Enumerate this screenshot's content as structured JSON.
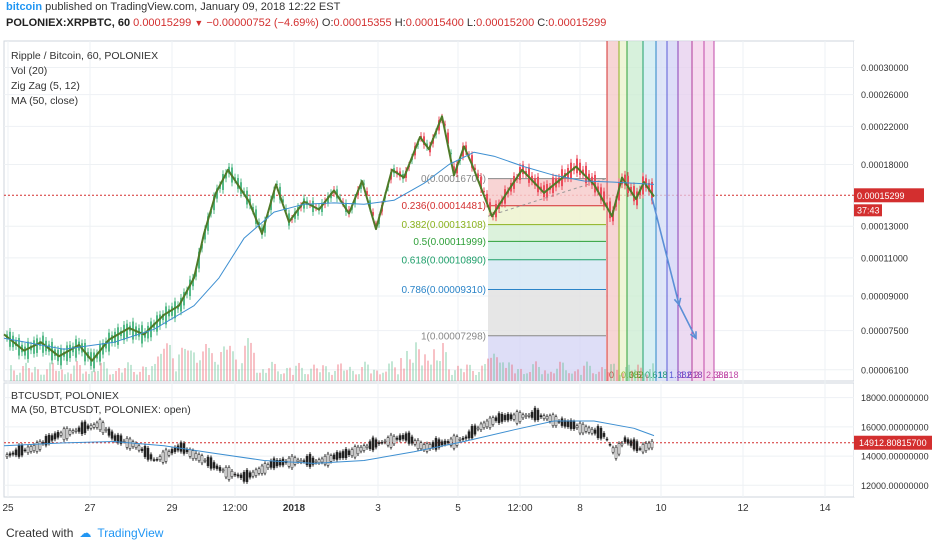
{
  "header": {
    "author": "bitcoin",
    "published_text": "published on TradingView.com, January 09, 2018 12:22 EST",
    "symbol": "POLONIEX:XRPBTC, 60",
    "last": "0.00015299",
    "change": "−0.00000752 (−4.69%)",
    "open_label": "O:",
    "open": "0.00015355",
    "high_label": "H:",
    "high": "0.00015400",
    "low_label": "L:",
    "low": "0.00015200",
    "close_label": "C:",
    "close": "0.00015299"
  },
  "legend_main": [
    "Ripple / Bitcoin, 60, POLONIEX",
    "Vol (20)",
    "Zig Zag (5, 12)",
    "MA (50, close)"
  ],
  "legend_lower": [
    "BTCUSDT, POLONIEX",
    "MA (50, BTCUSDT, POLONIEX: open)"
  ],
  "footer": {
    "created_with": "Created with",
    "brand": "TradingView"
  },
  "colors": {
    "up": "#53b987",
    "down": "#eb4d5c",
    "zigzag": "#4f7a28",
    "ma": "#3d8fd1",
    "price_line": "#d32f2f",
    "forecast": "#5b8fd6"
  },
  "chart_data": [
    {
      "type": "line",
      "title": "Ripple / Bitcoin, 60, POLONIEX",
      "x_ticks": [
        "25",
        "27",
        "29",
        "12:00",
        "2018",
        "3",
        "5",
        "12:00",
        "8",
        "10",
        "12",
        "14"
      ],
      "y_ticks": [
        "0.00030000",
        "0.00026000",
        "0.00022000",
        "0.00018000",
        "0.00015299",
        "0.00013000",
        "0.00011000",
        "0.00009000",
        "0.00007500",
        "0.00006100"
      ],
      "y_scale": "log",
      "last_price": 0.00015299,
      "countdown": "37:43",
      "ylim": [
        5.75e-05,
        0.000345
      ],
      "series": [
        {
          "name": "Zig Zag (5, 12)",
          "points": [
            [
              0,
              7.35e-05
            ],
            [
              20,
              6.75e-05
            ],
            [
              37,
              7.05e-05
            ],
            [
              55,
              6.55e-05
            ],
            [
              75,
              6.95e-05
            ],
            [
              88,
              6.4e-05
            ],
            [
              105,
              7.15e-05
            ],
            [
              125,
              7.6e-05
            ],
            [
              140,
              7.35e-05
            ],
            [
              160,
              8.15e-05
            ],
            [
              175,
              8.55e-05
            ],
            [
              190,
              9.9e-05
            ],
            [
              200,
              0.000125
            ],
            [
              212,
              0.000155
            ],
            [
              224,
              0.000175
            ],
            [
              245,
              0.000148
            ],
            [
              258,
              0.000125
            ],
            [
              272,
              0.000162
            ],
            [
              285,
              0.000133
            ],
            [
              300,
              0.000148
            ],
            [
              315,
              0.000142
            ],
            [
              330,
              0.000157
            ],
            [
              345,
              0.000139
            ],
            [
              358,
              0.000165
            ],
            [
              372,
              0.000128
            ],
            [
              388,
              0.000175
            ],
            [
              400,
              0.000168
            ],
            [
              416,
              0.000208
            ],
            [
              425,
              0.000195
            ],
            [
              438,
              0.000232
            ],
            [
              450,
              0.00017
            ],
            [
              460,
              0.000198
            ],
            [
              468,
              0.00018
            ],
            [
              488,
              0.000137
            ],
            [
              502,
              0.000154
            ],
            [
              518,
              0.000175
            ],
            [
              540,
              0.000155
            ],
            [
              572,
              0.000178
            ],
            [
              590,
              0.000162
            ],
            [
              608,
              0.000137
            ],
            [
              618,
              0.000168
            ],
            [
              624,
              0.00016
            ],
            [
              632,
              0.00015
            ],
            [
              640,
              0.000164
            ],
            [
              650,
              0.000152
            ]
          ]
        },
        {
          "name": "MA (50, close)",
          "points": [
            [
              0,
              7.2e-05
            ],
            [
              60,
              6.8e-05
            ],
            [
              110,
              7.05e-05
            ],
            [
              150,
              7.55e-05
            ],
            [
              190,
              8.55e-05
            ],
            [
              215,
              9.9e-05
            ],
            [
              240,
              0.000122
            ],
            [
              270,
              0.00014
            ],
            [
              300,
              0.000146
            ],
            [
              330,
              0.000147
            ],
            [
              360,
              0.000146
            ],
            [
              390,
              0.000149
            ],
            [
              420,
              0.000163
            ],
            [
              445,
              0.00018
            ],
            [
              470,
              0.000192
            ],
            [
              490,
              0.000188
            ],
            [
              520,
              0.000178
            ],
            [
              550,
              0.00017
            ],
            [
              580,
              0.000165
            ],
            [
              610,
              0.000164
            ],
            [
              650,
              0.000162
            ]
          ]
        },
        {
          "name": "Forecast",
          "points": [
            [
              648,
              0.000151
            ],
            [
              675,
              8.6e-05
            ],
            [
              692,
              7.2e-05
            ]
          ]
        }
      ],
      "fib_retracement": {
        "top_label": "0(0.00016700)",
        "levels": [
          {
            "ratio": 0,
            "label": "0(0.00016700)",
            "value": 0.000167,
            "color": "#888888"
          },
          {
            "ratio": 0.236,
            "label": "0.236(0.00014481)",
            "value": 0.00014481,
            "color": "#d32f2f"
          },
          {
            "ratio": 0.382,
            "label": "0.382(0.00013108)",
            "value": 0.00013108,
            "color": "#8bb21e"
          },
          {
            "ratio": 0.5,
            "label": "0.5(0.00011999)",
            "value": 0.00011999,
            "color": "#2e9f38"
          },
          {
            "ratio": 0.618,
            "label": "0.618(0.00010890)",
            "value": 0.0001089,
            "color": "#1e9f6a"
          },
          {
            "ratio": 0.786,
            "label": "0.786(0.00009310)",
            "value": 9.31e-05,
            "color": "#2a84c8"
          },
          {
            "ratio": 1,
            "label": "1(0.00007298)",
            "value": 7.298e-05,
            "color": "#888888"
          }
        ]
      },
      "fib_time_zones": [
        "0",
        "0.382",
        "0.5",
        "0.618",
        "1",
        "1.382",
        "1.618",
        "2",
        "2.382",
        "2.618"
      ],
      "volume_label": "Vol (20)"
    },
    {
      "type": "line",
      "title": "BTCUSDT, POLONIEX",
      "y_ticks": [
        "18000.00000000",
        "16000.00000000",
        "14912.80815700",
        "14000.00000000",
        "12000.00000000"
      ],
      "ylim": [
        11200,
        19000
      ],
      "last_price": 14912.808157,
      "series": [
        {
          "name": "BTCUSDT, POLONIEX",
          "points": [
            [
              0,
              14000
            ],
            [
              30,
              14600
            ],
            [
              55,
              15500
            ],
            [
              75,
              15800
            ],
            [
              95,
              16200
            ],
            [
              110,
              15200
            ],
            [
              130,
              14800
            ],
            [
              150,
              13700
            ],
            [
              175,
              14600
            ],
            [
              195,
              13900
            ],
            [
              215,
              13100
            ],
            [
              240,
              12500
            ],
            [
              265,
              13400
            ],
            [
              290,
              13700
            ],
            [
              310,
              13600
            ],
            [
              340,
              14100
            ],
            [
              360,
              14600
            ],
            [
              380,
              15000
            ],
            [
              400,
              15300
            ],
            [
              420,
              14600
            ],
            [
              440,
              14900
            ],
            [
              460,
              15200
            ],
            [
              475,
              16000
            ],
            [
              490,
              16500
            ],
            [
              510,
              16700
            ],
            [
              530,
              16800
            ],
            [
              545,
              16600
            ],
            [
              560,
              16200
            ],
            [
              580,
              15900
            ],
            [
              600,
              15400
            ],
            [
              610,
              14200
            ],
            [
              620,
              15100
            ],
            [
              635,
              14500
            ],
            [
              650,
              14912
            ]
          ]
        },
        {
          "name": "MA (50, BTCUSDT, POLONIEX: open)",
          "points": [
            [
              0,
              14700
            ],
            [
              60,
              14900
            ],
            [
              110,
              15000
            ],
            [
              160,
              14700
            ],
            [
              210,
              14200
            ],
            [
              260,
              13700
            ],
            [
              310,
              13500
            ],
            [
              360,
              13700
            ],
            [
              410,
              14300
            ],
            [
              460,
              15000
            ],
            [
              510,
              15800
            ],
            [
              550,
              16400
            ],
            [
              590,
              16400
            ],
            [
              630,
              15900
            ],
            [
              650,
              15400
            ]
          ]
        }
      ]
    }
  ]
}
